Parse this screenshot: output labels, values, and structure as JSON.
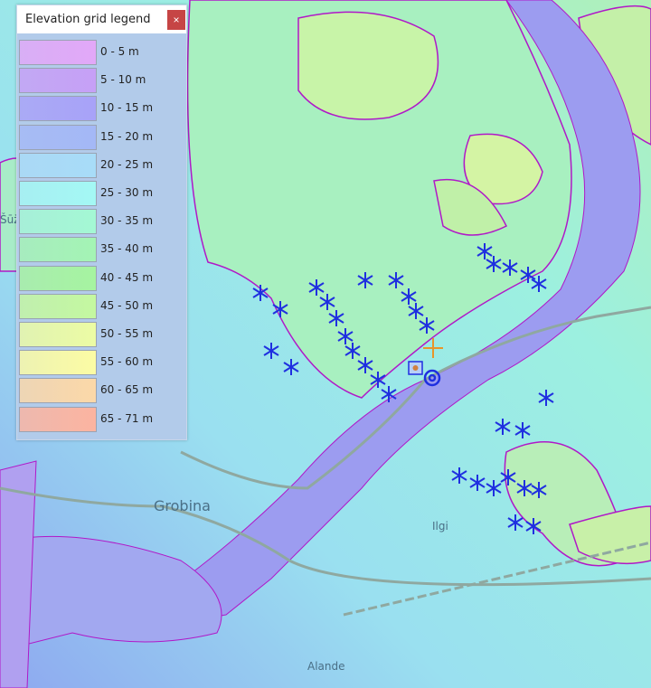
{
  "legend": {
    "title": "Elevation grid legend",
    "close_label": "×",
    "items": [
      {
        "label": "0 - 5 m",
        "color": "#e2a8f8"
      },
      {
        "label": "5 - 10 m",
        "color": "#c6a0f6"
      },
      {
        "label": "10 - 15 m",
        "color": "#a8a2f8"
      },
      {
        "label": "15 - 20 m",
        "color": "#a4b8f6"
      },
      {
        "label": "20 - 25 m",
        "color": "#a8dcf8"
      },
      {
        "label": "25 - 30 m",
        "color": "#a4f8f4"
      },
      {
        "label": "30 - 35 m",
        "color": "#a4f8d4"
      },
      {
        "label": "35 - 40 m",
        "color": "#a4f4b4"
      },
      {
        "label": "40 - 45 m",
        "color": "#a6f4a0"
      },
      {
        "label": "45 - 50 m",
        "color": "#c4f8a0"
      },
      {
        "label": "50 - 55 m",
        "color": "#ecfca4"
      },
      {
        "label": "55 - 60 m",
        "color": "#fcfca4"
      },
      {
        "label": "60 - 65 m",
        "color": "#fcd8a8"
      },
      {
        "label": "65 - 71 m",
        "color": "#fcb4a0"
      }
    ]
  },
  "map": {
    "place_labels": [
      "Grobina",
      "Ilgi",
      "Alande",
      "Šūža"
    ],
    "marker_color": "#1f2fe0",
    "contour_color": "#b018c8",
    "crosshair_color": "#e8962a",
    "icons": [
      "asterisk-marker-icon",
      "crosshair-icon",
      "target-marker-icon",
      "square-marker-icon"
    ]
  }
}
